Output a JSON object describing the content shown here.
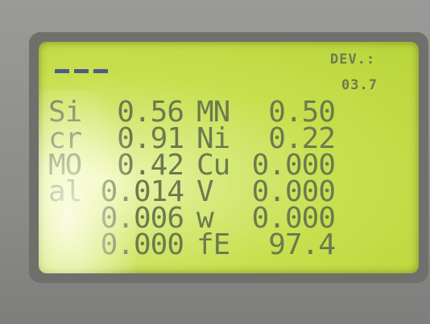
{
  "header": {
    "label": "DEV.:",
    "value": "03.7"
  },
  "rows": [
    {
      "left": {
        "label": "Si",
        "value": "0.56"
      },
      "right": {
        "label": "MN",
        "value": "0.50"
      }
    },
    {
      "left": {
        "label": "cr",
        "value": "0.91"
      },
      "right": {
        "label": "Ni",
        "value": "0.22"
      }
    },
    {
      "left": {
        "label": "MO",
        "value": "0.42"
      },
      "right": {
        "label": "Cu",
        "value": "0.000"
      }
    },
    {
      "left": {
        "label": "al",
        "value": "0.014"
      },
      "right": {
        "label": "V",
        "value": "0.000"
      }
    },
    {
      "left": {
        "value": "0.006"
      },
      "right": {
        "label": "w",
        "value": "0.000"
      }
    },
    {
      "left": {
        "value": "0.000"
      },
      "right": {
        "label": "fE",
        "value": "97.4"
      }
    }
  ]
}
